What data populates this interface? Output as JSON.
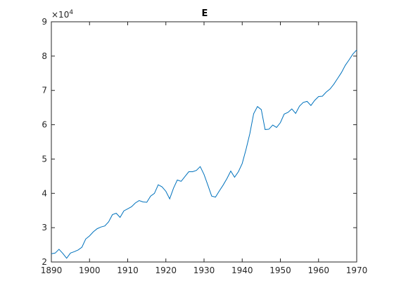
{
  "chart_data": {
    "type": "line",
    "title": "E",
    "xlabel": "",
    "ylabel": "",
    "xlim": [
      1890,
      1970
    ],
    "ylim": [
      20000,
      90000
    ],
    "x_ticks": [
      1890,
      1900,
      1910,
      1920,
      1930,
      1940,
      1950,
      1960,
      1970
    ],
    "y_ticks": [
      2,
      3,
      4,
      5,
      6,
      7,
      8,
      9
    ],
    "y_multiplier_base": "×10",
    "y_multiplier_exponent": "4",
    "grid": false,
    "colors": {
      "line": "#0072bd",
      "axis": "#262626"
    },
    "series": [
      {
        "x": [
          1890,
          1891,
          1892,
          1893,
          1894,
          1895,
          1896,
          1897,
          1898,
          1899,
          1900,
          1901,
          1902,
          1903,
          1904,
          1905,
          1906,
          1907,
          1908,
          1909,
          1910,
          1911,
          1912,
          1913,
          1914,
          1915,
          1916,
          1917,
          1918,
          1919,
          1920,
          1921,
          1922,
          1923,
          1924,
          1925,
          1926,
          1927,
          1928,
          1929,
          1930,
          1931,
          1932,
          1933,
          1934,
          1935,
          1936,
          1937,
          1938,
          1939,
          1940,
          1941,
          1942,
          1943,
          1944,
          1945,
          1946,
          1947,
          1948,
          1949,
          1950,
          1951,
          1952,
          1953,
          1954,
          1955,
          1956,
          1957,
          1958,
          1959,
          1960,
          1961,
          1962,
          1963,
          1964,
          1965,
          1966,
          1967,
          1968,
          1969,
          1970
        ],
        "values": [
          22400,
          22600,
          23700,
          22500,
          21100,
          22600,
          23000,
          23500,
          24300,
          26700,
          27600,
          28800,
          29700,
          30200,
          30500,
          31700,
          33800,
          34200,
          33000,
          34900,
          35500,
          36100,
          37200,
          37900,
          37500,
          37400,
          39200,
          40000,
          42500,
          41900,
          40600,
          38400,
          41500,
          43900,
          43500,
          44900,
          46300,
          46300,
          46700,
          47800,
          45500,
          42400,
          39200,
          38900,
          40700,
          42400,
          44300,
          46500,
          44700,
          46300,
          48700,
          52800,
          57400,
          63200,
          65300,
          64400,
          58600,
          58700,
          59900,
          59200,
          60600,
          63100,
          63600,
          64600,
          63300,
          65400,
          66500,
          66800,
          65600,
          67100,
          68200,
          68300,
          69500,
          70400,
          71800,
          73500,
          75200,
          77300,
          78900,
          80600,
          81800
        ]
      }
    ]
  }
}
